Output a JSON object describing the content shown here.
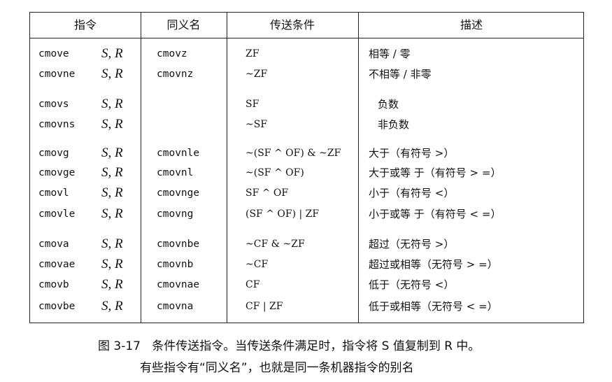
{
  "table": {
    "headers": [
      "指令",
      "同义名",
      "传送条件",
      "描述"
    ],
    "rows": [
      {
        "instr": "cmove",
        "operands": "S, R",
        "synonym": "cmovz",
        "condition": "ZF",
        "description": "相等 / 零"
      },
      {
        "instr": "cmovne",
        "operands": "S, R",
        "synonym": "cmovnz",
        "condition": "~ZF",
        "description": "不相等 / 非零"
      },
      {
        "instr": "cmovs",
        "operands": "S, R",
        "synonym": "",
        "condition": "SF",
        "description": "负数"
      },
      {
        "instr": "cmovns",
        "operands": "S, R",
        "synonym": "",
        "condition": "~SF",
        "description": "非负数"
      },
      {
        "instr": "cmovg",
        "operands": "S, R",
        "synonym": "cmovnle",
        "condition": "~(SF ^ OF) & ~ZF",
        "description": "大于（有符号 >）"
      },
      {
        "instr": "cmovge",
        "operands": "S, R",
        "synonym": "cmovnl",
        "condition": "~(SF ^ OF)",
        "description": "大于或等 于（有符号 > =）"
      },
      {
        "instr": "cmovl",
        "operands": "S, R",
        "synonym": "cmovnge",
        "condition": "SF ^ OF",
        "description": "小于（有符号 <）"
      },
      {
        "instr": "cmovle",
        "operands": "S, R",
        "synonym": "cmovng",
        "condition": "(SF ^ OF) | ZF",
        "description": "小于或等 于（有符号 < =）"
      },
      {
        "instr": "cmova",
        "operands": "S, R",
        "synonym": "cmovnbe",
        "condition": "~CF & ~ZF",
        "description": "超过（无符号 >）"
      },
      {
        "instr": "cmovae",
        "operands": "S, R",
        "synonym": "cmovnb",
        "condition": "~CF",
        "description": "超过或相等（无符号 > =）"
      },
      {
        "instr": "cmovb",
        "operands": "S, R",
        "synonym": "cmovnae",
        "condition": "CF",
        "description": "低于（无符号 <）"
      },
      {
        "instr": "cmovbe",
        "operands": "S, R",
        "synonym": "cmovna",
        "condition": "CF | ZF",
        "description": "低于或相等（无符号 < =）"
      }
    ]
  },
  "caption": {
    "figure_number": "图 3-17",
    "line1": "条件传送指令。当传送条件满足时，指令将 S 值复制到 R 中。",
    "line2": "有些指令有“同义名”，也就是同一条机器指令的别名"
  }
}
